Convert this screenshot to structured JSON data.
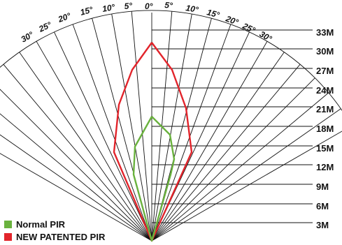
{
  "diagram": {
    "angle_labels_left": [
      "30°",
      "25°",
      "20°",
      "15°",
      "10°",
      "5°"
    ],
    "angle_label_center": "0°",
    "angle_labels_right": [
      "5°",
      "10°",
      "15°",
      "20°",
      "25°",
      "30°"
    ],
    "distance_labels": [
      "33M",
      "30M",
      "27M",
      "24M",
      "21M",
      "18M",
      "15M",
      "12M",
      "9M",
      "6M",
      "3M"
    ],
    "legend": [
      {
        "label": "Normal PIR",
        "color": "#6ab23e"
      },
      {
        "label": "NEW PATENTED PIR",
        "color": "#e2242b"
      }
    ],
    "colors": {
      "lines": "#111111",
      "normal_pir": "#6ab23e",
      "new_patented_pir": "#e2242b"
    }
  }
}
